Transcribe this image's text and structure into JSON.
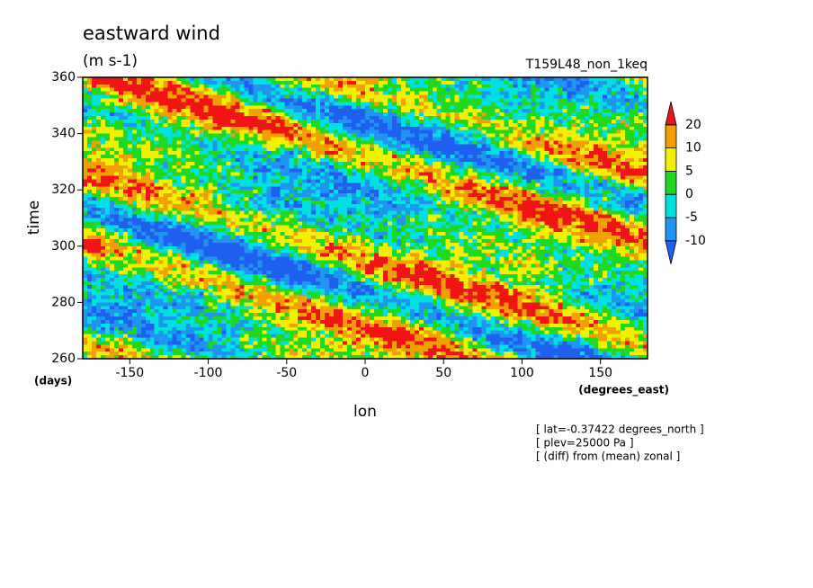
{
  "chart_data": {
    "type": "heatmap",
    "title": "eastward wind",
    "subtitle": "(m s-1)",
    "run_label": "T159L48_non_1keq",
    "y_label": "time",
    "y_unit": "(days)",
    "x_label": "lon",
    "x_unit": "(degrees_east)",
    "notes": [
      "[ lat=-0.37422 degrees_north ]",
      "[ plev=25000 Pa ]",
      "[ (diff) from (mean) zonal ]"
    ],
    "xlim": [
      -180,
      180
    ],
    "xticks": [
      -150,
      -100,
      -50,
      0,
      50,
      100,
      150
    ],
    "ylim": [
      260,
      360
    ],
    "yticks": [
      260,
      280,
      300,
      320,
      340,
      360
    ],
    "levels": [
      -10,
      -5,
      0,
      5,
      10,
      20
    ],
    "colors": [
      "#2060f0",
      "#1e96f0",
      "#00e0e0",
      "#20d820",
      "#f0f000",
      "#f0a000",
      "#f01414"
    ]
  }
}
